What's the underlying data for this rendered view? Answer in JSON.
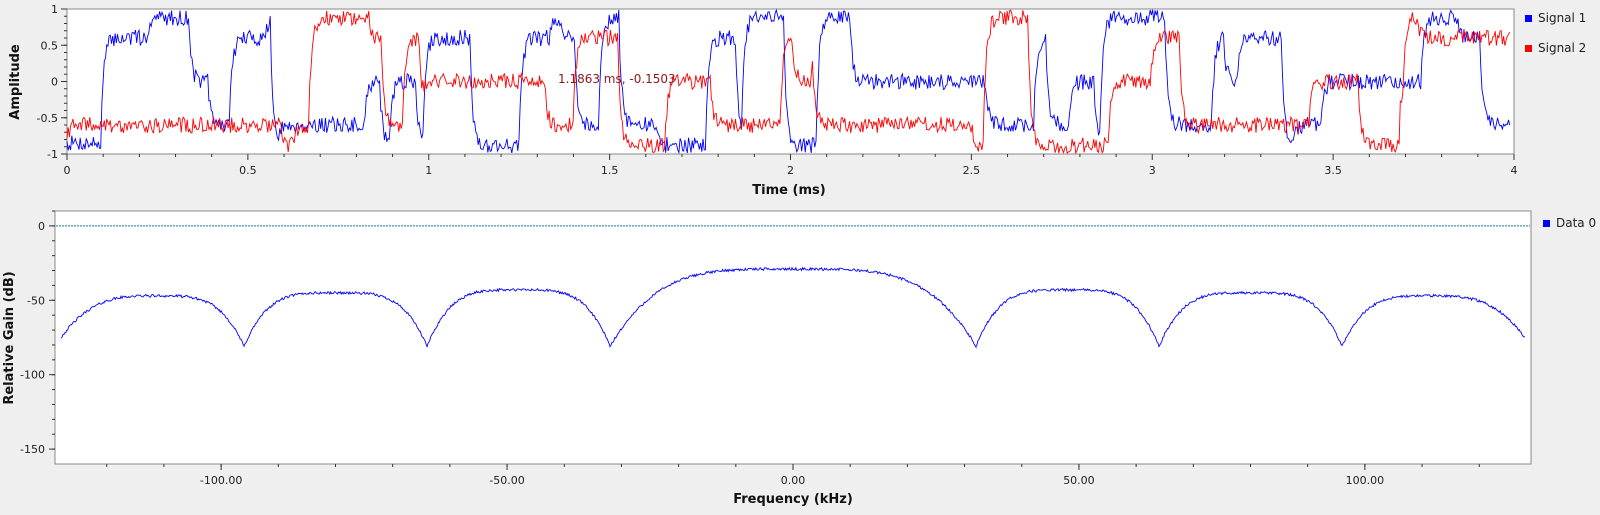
{
  "chart_data": [
    {
      "type": "line",
      "xlabel": "Time (ms)",
      "ylabel": "Amplitude",
      "xlim": [
        0,
        4
      ],
      "ylim": [
        -1,
        1
      ],
      "x_ticks": [
        "0",
        "0.5",
        "1",
        "1.5",
        "2",
        "2.5",
        "3",
        "3.5",
        "4"
      ],
      "y_ticks": [
        "1",
        "0.5",
        "0",
        "-0.5",
        "-1"
      ],
      "legend_position": "right",
      "marker_text": "1.1863 ms, -0.1503",
      "series": [
        {
          "name": "Signal 1",
          "color": "#0000ff",
          "seed": 7
        },
        {
          "name": "Signal 2",
          "color": "#ff0000",
          "seed": 19
        }
      ]
    },
    {
      "type": "line",
      "xlabel": "Frequency (kHz)",
      "ylabel": "Relative Gain (dB)",
      "xlim": [
        -128,
        128
      ],
      "ylim": [
        -160,
        10
      ],
      "x_ticks": [
        "-100.00",
        "-50.00",
        "0.00",
        "50.00",
        "100.00"
      ],
      "y_ticks": [
        "0",
        "-50",
        "-100",
        "-150"
      ],
      "legend_position": "right",
      "reference_line": 0,
      "lobe_nulls": [
        -96,
        -64,
        -32,
        32,
        64,
        96
      ],
      "lobe_peaks": [
        -47,
        -45,
        -43,
        -29,
        -43,
        -45,
        -47
      ],
      "null_depth": -81,
      "series": [
        {
          "name": "Data 0",
          "color": "#0000ff"
        }
      ]
    }
  ]
}
